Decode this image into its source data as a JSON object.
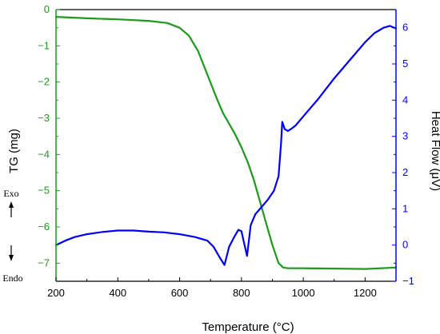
{
  "chart_data": {
    "type": "line",
    "xlabel": "Temperature (°C)",
    "y_left_label": "TG (mg)",
    "y_right_label": "Heat Flow (μV)",
    "xlim": [
      200,
      1300
    ],
    "x_ticks": [
      200,
      400,
      600,
      800,
      1000,
      1200
    ],
    "y_left_lim": [
      -7.5,
      0
    ],
    "y_left_ticks": [
      0,
      -1,
      -2,
      -3,
      -4,
      -5,
      -6,
      -7
    ],
    "y_right_lim": [
      -1,
      6.5
    ],
    "y_right_ticks": [
      6,
      5,
      4,
      3,
      2,
      1,
      0,
      -1
    ],
    "grid": false,
    "left_axis_color": "#1a9c1a",
    "right_axis_color": "#0000ff",
    "exo_label": "Exo",
    "endo_label": "Endo",
    "series": [
      {
        "axis": "left",
        "color": "#1a9c1a",
        "x": [
          200,
          300,
          400,
          500,
          560,
          600,
          630,
          660,
          690,
          720,
          740,
          760,
          780,
          800,
          820,
          840,
          860,
          880,
          900,
          920,
          935,
          950,
          1000,
          1100,
          1200,
          1300
        ],
        "y": [
          -0.2,
          -0.24,
          -0.27,
          -0.31,
          -0.37,
          -0.5,
          -0.72,
          -1.15,
          -1.8,
          -2.45,
          -2.85,
          -3.15,
          -3.45,
          -3.8,
          -4.2,
          -4.7,
          -5.3,
          -5.9,
          -6.5,
          -7.0,
          -7.12,
          -7.14,
          -7.14,
          -7.15,
          -7.16,
          -7.12
        ]
      },
      {
        "axis": "right",
        "color": "#0000ff",
        "x": [
          200,
          230,
          260,
          300,
          350,
          400,
          450,
          500,
          550,
          600,
          650,
          690,
          710,
          730,
          745,
          760,
          775,
          790,
          800,
          810,
          818,
          823,
          830,
          845,
          865,
          885,
          905,
          920,
          928,
          932,
          936,
          940,
          950,
          960,
          975,
          1000,
          1050,
          1100,
          1150,
          1200,
          1230,
          1260,
          1280,
          1300
        ],
        "y": [
          0.0,
          0.12,
          0.22,
          0.3,
          0.36,
          0.4,
          0.4,
          0.37,
          0.35,
          0.3,
          0.22,
          0.12,
          -0.05,
          -0.35,
          -0.55,
          -0.05,
          0.2,
          0.42,
          0.38,
          0.0,
          -0.3,
          0.05,
          0.55,
          0.85,
          1.05,
          1.25,
          1.5,
          1.9,
          2.8,
          3.4,
          3.3,
          3.2,
          3.15,
          3.2,
          3.3,
          3.55,
          4.05,
          4.6,
          5.1,
          5.6,
          5.85,
          6.0,
          6.05,
          5.98
        ]
      }
    ]
  }
}
